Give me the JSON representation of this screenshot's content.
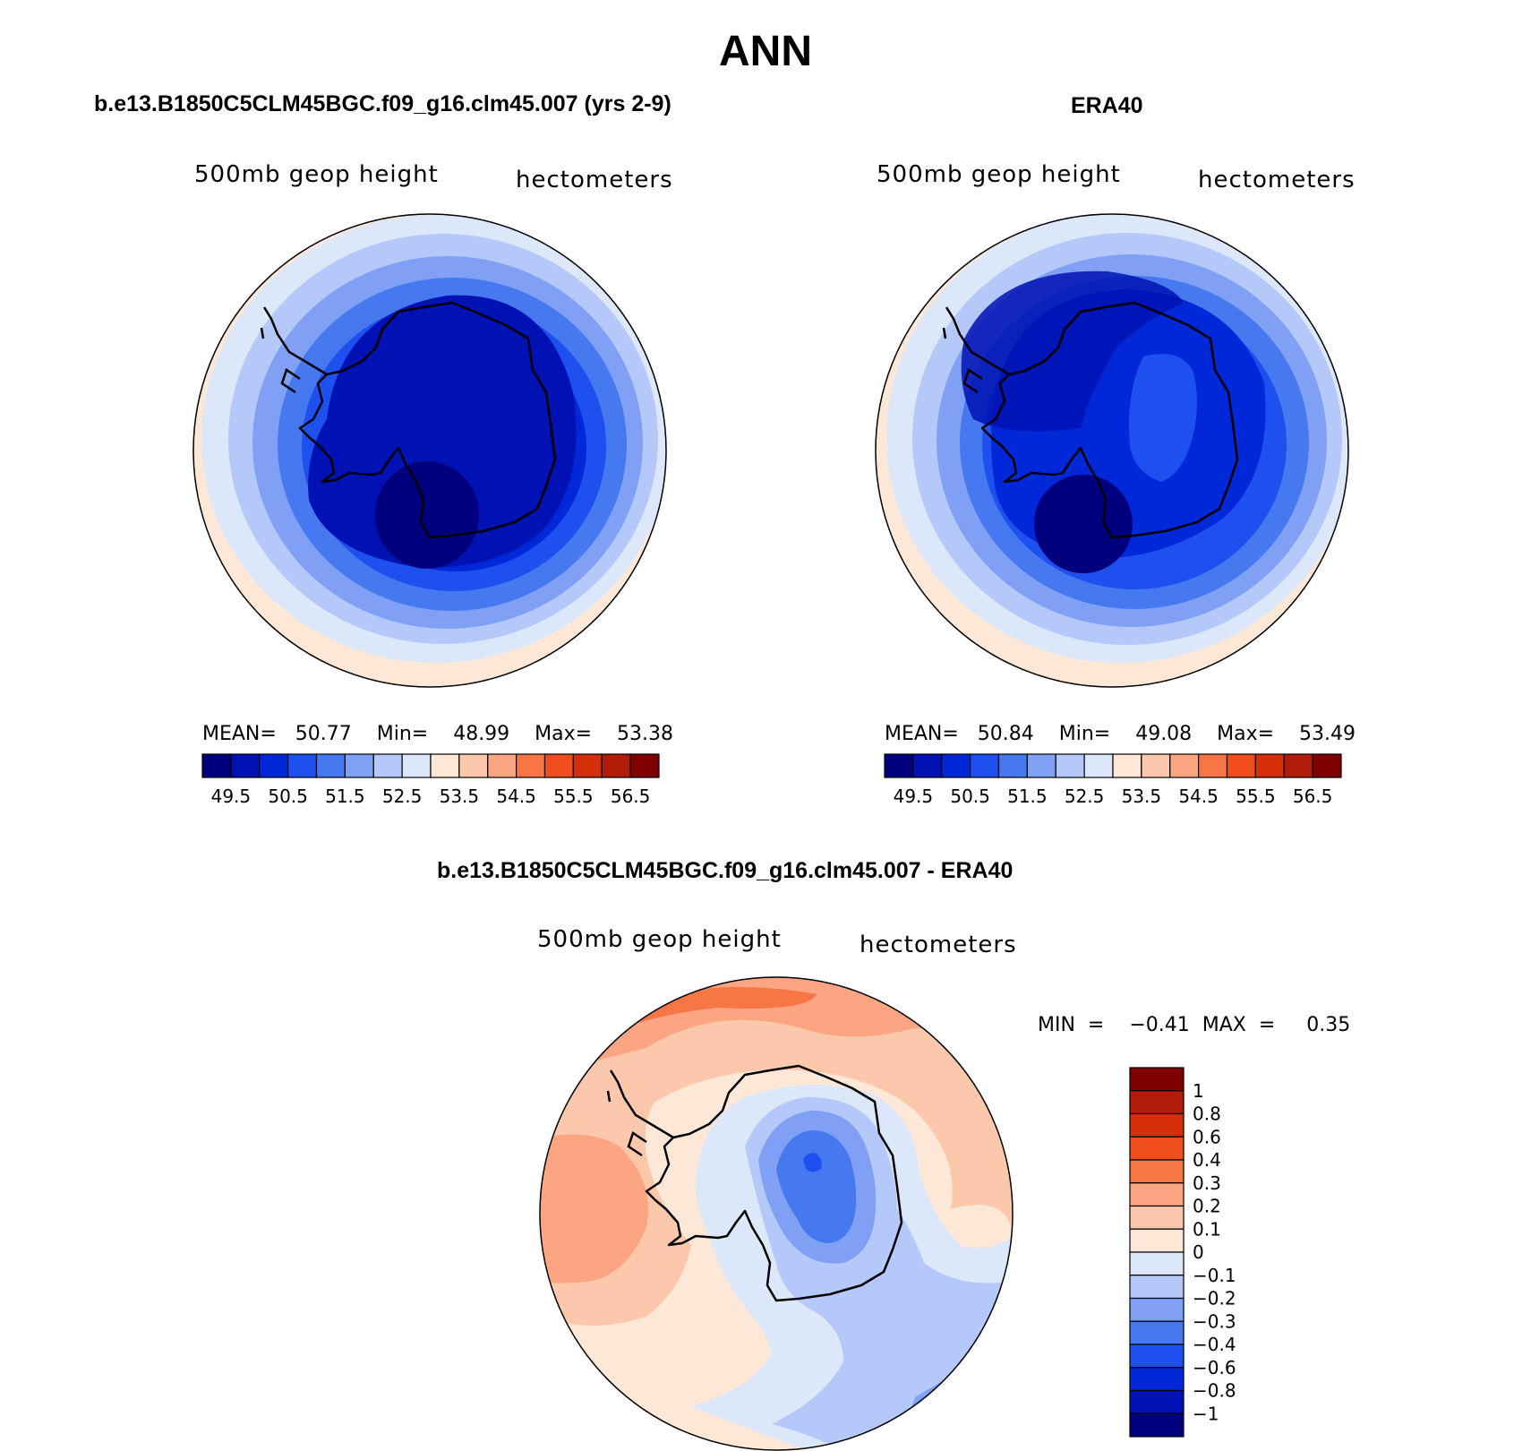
{
  "page": {
    "title": "ANN",
    "diff_title": "b.e13.B1850C5CLM45BGC.f09_g16.clm45.007 - ERA40"
  },
  "panels": [
    {
      "case_title": "b.e13.B1850C5CLM45BGC.f09_g16.clm45.007 (yrs 2-9)",
      "left_label": "500mb  geop  height",
      "right_label": "hectometers",
      "stats": "MEAN=   50.77    Min=    48.99    Max=    53.38"
    },
    {
      "case_title": "ERA40",
      "left_label": "500mb  geop  height",
      "right_label": "hectometers",
      "stats": "MEAN=   50.84    Min=    49.08    Max=    53.49"
    }
  ],
  "diff_panel": {
    "left_label": "500mb  geop  height",
    "right_label": "hectometers",
    "stats": "MIN  =    −0.41  MAX  =     0.35"
  },
  "chart_data": [
    {
      "type": "heatmap",
      "title": "b.e13.B1850C5CLM45BGC.f09_g16.clm45.007 (yrs 2-9)",
      "variable": "500mb geop height",
      "units": "hectometers",
      "projection": "south polar stereographic",
      "mean": 50.77,
      "min": 48.99,
      "max": 53.38,
      "levels": [
        49.5,
        50,
        50.5,
        51,
        51.5,
        52,
        52.5,
        53,
        53.5,
        54,
        54.5,
        55,
        55.5,
        56,
        56.5
      ],
      "tick_labels": [
        "49.5",
        "50.5",
        "51.5",
        "52.5",
        "53.5",
        "54.5",
        "55.5",
        "56.5"
      ],
      "colors": [
        "#00007f",
        "#0012b3",
        "#0028d8",
        "#1e50f0",
        "#4678f0",
        "#7fa0f5",
        "#b4c8fa",
        "#dce8fa",
        "#fde8d7",
        "#fcc8ac",
        "#fba582",
        "#f87645",
        "#f04d1c",
        "#d42f08",
        "#b01b0a",
        "#7f0000"
      ]
    },
    {
      "type": "heatmap",
      "title": "ERA40",
      "variable": "500mb geop height",
      "units": "hectometers",
      "projection": "south polar stereographic",
      "mean": 50.84,
      "min": 49.08,
      "max": 53.49,
      "levels": [
        49.5,
        50,
        50.5,
        51,
        51.5,
        52,
        52.5,
        53,
        53.5,
        54,
        54.5,
        55,
        55.5,
        56,
        56.5
      ],
      "tick_labels": [
        "49.5",
        "50.5",
        "51.5",
        "52.5",
        "53.5",
        "54.5",
        "55.5",
        "56.5"
      ],
      "colors": [
        "#00007f",
        "#0012b3",
        "#0028d8",
        "#1e50f0",
        "#4678f0",
        "#7fa0f5",
        "#b4c8fa",
        "#dce8fa",
        "#fde8d7",
        "#fcc8ac",
        "#fba582",
        "#f87645",
        "#f04d1c",
        "#d42f08",
        "#b01b0a",
        "#7f0000"
      ]
    },
    {
      "type": "heatmap",
      "title": "b.e13.B1850C5CLM45BGC.f09_g16.clm45.007 - ERA40",
      "variable": "500mb geop height",
      "units": "hectometers",
      "projection": "south polar stereographic",
      "min": -0.41,
      "max": 0.35,
      "levels": [
        -1,
        -0.8,
        -0.6,
        -0.4,
        -0.3,
        -0.2,
        -0.1,
        0,
        0.1,
        0.2,
        0.3,
        0.4,
        0.6,
        0.8,
        1
      ],
      "tick_labels": [
        "1",
        "0.8",
        "0.6",
        "0.4",
        "0.3",
        "0.2",
        "0.1",
        "0",
        "−0.1",
        "−0.2",
        "−0.3",
        "−0.4",
        "−0.6",
        "−0.8",
        "−1"
      ],
      "colors_top_to_bottom": [
        "#7f0000",
        "#b01b0a",
        "#d42f08",
        "#f04d1c",
        "#f87645",
        "#fba582",
        "#fcc8ac",
        "#fde8d7",
        "#dce8fa",
        "#b4c8fa",
        "#7fa0f5",
        "#4678f0",
        "#1e50f0",
        "#0028d8",
        "#0012b3",
        "#00007f"
      ]
    }
  ]
}
